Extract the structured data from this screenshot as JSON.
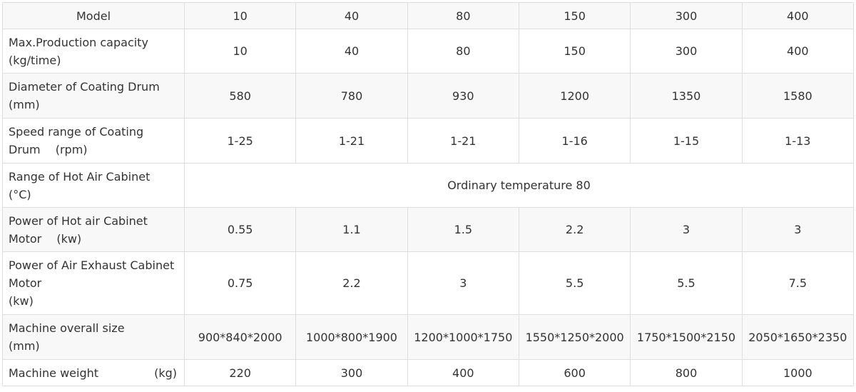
{
  "table": {
    "header": {
      "label": "Model",
      "values": [
        "10",
        "40",
        "80",
        "150",
        "300",
        "400"
      ]
    },
    "rows": [
      {
        "label_line1": "Max.Production capacity",
        "label_line2": "(kg/time)",
        "values": [
          "10",
          "40",
          "80",
          "150",
          "300",
          "400"
        ]
      },
      {
        "label_line1": "Diameter of Coating Drum",
        "label_line2": "(mm)",
        "values": [
          "580",
          "780",
          "930",
          "1200",
          "1350",
          "1580"
        ]
      },
      {
        "label_line1": "Speed range of Coating",
        "label_line2": "Drum  (rpm)",
        "values": [
          "1-25",
          "1-21",
          "1-21",
          "1-16",
          "1-15",
          "1-13"
        ]
      },
      {
        "label_line1": "Range of Hot Air Cabinet",
        "label_line2": "(°C)",
        "merged_value": "Ordinary temperature 80"
      },
      {
        "label_line1": "Power of Hot air Cabinet",
        "label_line2": "Motor  (kw)",
        "values": [
          "0.55",
          "1.1",
          "1.5",
          "2.2",
          "3",
          "3"
        ]
      },
      {
        "label_line1": "Power of Air Exhaust Cabinet",
        "label_line2": "Motor",
        "label_line3": "(kw)",
        "values": [
          "0.75",
          "2.2",
          "3",
          "5.5",
          "5.5",
          "7.5"
        ]
      },
      {
        "label_line1": "Machine overall size",
        "label_line2": "(mm)",
        "values": [
          "900*840*2000",
          "1000*800*1900",
          "1200*1000*1750",
          "1550*1250*2000",
          "1750*1500*2150",
          "2050*1650*2350"
        ]
      },
      {
        "label_line1": "Machine weight",
        "label_unit": "(kg)",
        "values": [
          "220",
          "300",
          "400",
          "600",
          "800",
          "1000"
        ]
      }
    ]
  }
}
